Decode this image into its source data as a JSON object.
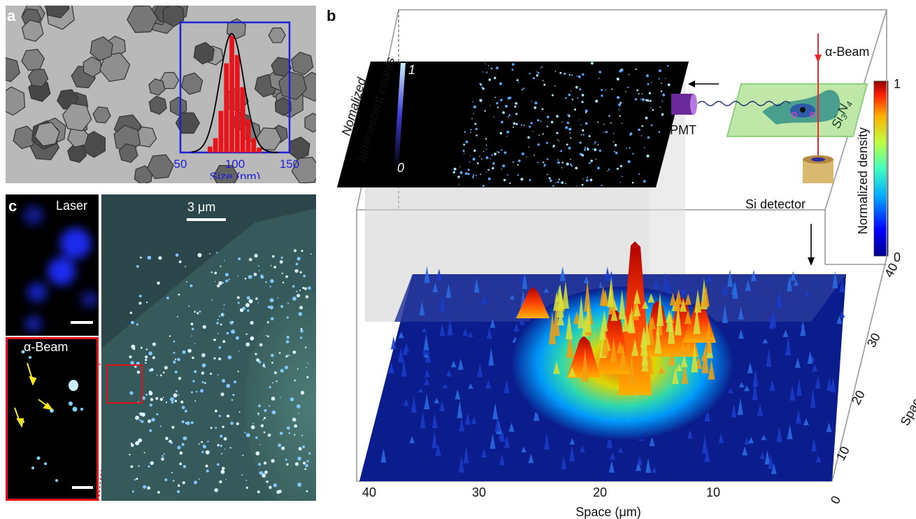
{
  "panel_a": {
    "letter": "a",
    "histogram": {
      "type": "bar",
      "xticks": [
        "50",
        "100",
        "150"
      ],
      "xlabel": "Size (nm)",
      "xlim": [
        50,
        150
      ],
      "bins": [
        75,
        80,
        85,
        90,
        95,
        100,
        105,
        110,
        115,
        120
      ],
      "values": [
        0.05,
        0.12,
        0.35,
        0.75,
        0.98,
        0.82,
        0.55,
        0.28,
        0.12,
        0.04
      ],
      "fit": "gaussian",
      "bar_color": "#e8141b",
      "fit_color": "#000000",
      "frame_color": "#1f1fd6"
    }
  },
  "panel_b": {
    "letter": "b",
    "inset_colorbar_label": "Nomalized luminescent counts",
    "inset_colorbar_ticks": [
      "1",
      "0"
    ],
    "schematic": {
      "beam_label": "α-Beam",
      "sample_label_main": "Si",
      "sample_label_sub1": "3",
      "sample_label_mid": "N",
      "sample_label_sub2": "4",
      "pmt_label": "PMT",
      "detector_label": "Si detector"
    },
    "colorbar": {
      "label": "Normalized density",
      "ticks": [
        "1",
        "0"
      ]
    },
    "x_axis": {
      "label": "Space (μm)",
      "ticks": [
        "40",
        "30",
        "20",
        "10"
      ]
    },
    "y_axis": {
      "label": "Space (μm)",
      "ticks": [
        "40",
        "30",
        "20",
        "10",
        "0"
      ]
    }
  },
  "panel_c": {
    "letter": "c",
    "laser_label": "Laser",
    "alpha_label": "α-Beam",
    "scale_label": "3 μm"
  }
}
